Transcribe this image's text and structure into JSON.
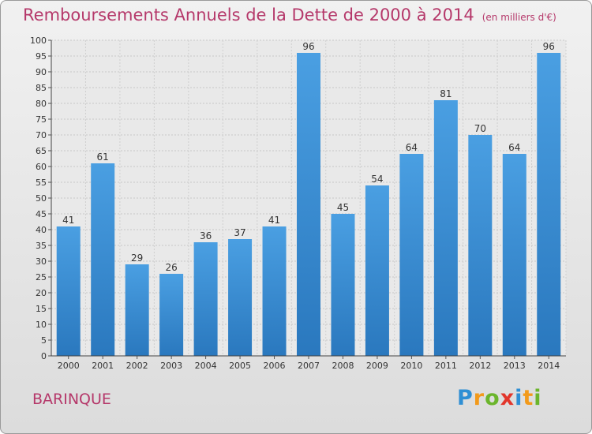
{
  "page": {
    "title": "Remboursements Annuels de la Dette de 2000 à 2014",
    "unit": "(en milliers d'€)",
    "commune": "BARINQUE",
    "logo": {
      "letters": [
        {
          "char": "P",
          "color": "#2f8fd4"
        },
        {
          "char": "r",
          "color": "#f29a1b"
        },
        {
          "char": "o",
          "color": "#6bb52c"
        },
        {
          "char": "x",
          "color": "#e2362b"
        },
        {
          "char": "i",
          "color": "#2f8fd4"
        },
        {
          "char": "t",
          "color": "#f29a1b"
        },
        {
          "char": "i",
          "color": "#6bb52c"
        }
      ]
    }
  },
  "chart_data": {
    "type": "bar",
    "categories": [
      "2000",
      "2001",
      "2002",
      "2003",
      "2004",
      "2005",
      "2006",
      "2007",
      "2008",
      "2009",
      "2010",
      "2011",
      "2012",
      "2013",
      "2014"
    ],
    "values": [
      41,
      61,
      29,
      26,
      36,
      37,
      41,
      96,
      45,
      54,
      64,
      81,
      70,
      64,
      96
    ],
    "ylim": [
      0,
      100
    ],
    "ytick_step": 5,
    "grid": true,
    "data_labels": true,
    "bar_color": "#4a9fe2",
    "bar_color_dark": "#2a78be"
  }
}
